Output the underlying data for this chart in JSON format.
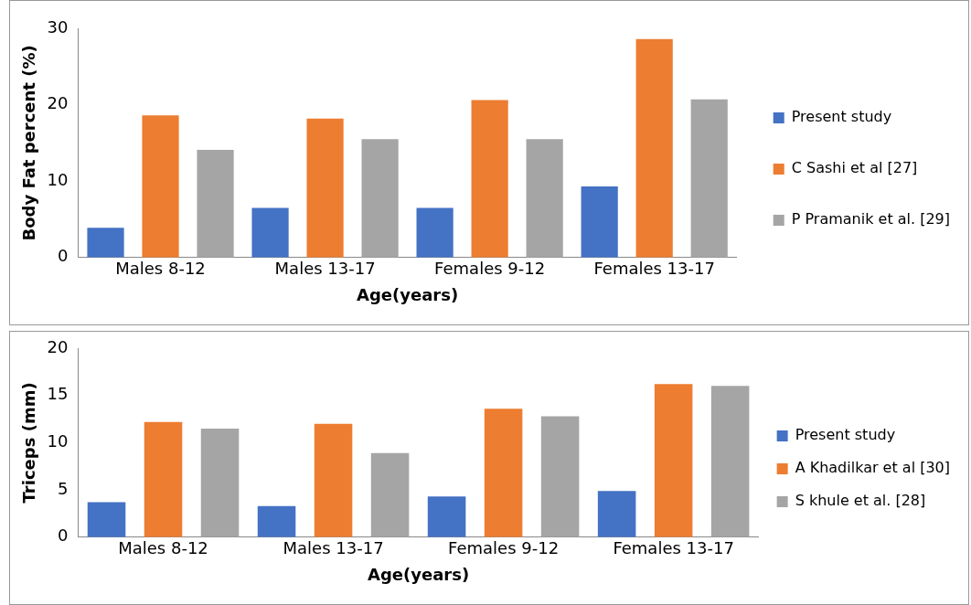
{
  "chart_data": [
    {
      "type": "bar",
      "xlabel": "Age(years)",
      "ylabel": "Body Fat percent (%)",
      "categories": [
        "Males 8-12",
        "Males 13-17",
        "Females 9-12",
        "Females 13-17"
      ],
      "series": [
        {
          "name": "Present study",
          "color": "#4472c4",
          "values": [
            3.9,
            6.5,
            6.5,
            9.3
          ]
        },
        {
          "name": "C Sashi et al [27]",
          "color": "#ed7d31",
          "values": [
            18.6,
            18.2,
            20.6,
            28.6
          ]
        },
        {
          "name": "P Pramanik et al. [29]",
          "color": "#a5a5a5",
          "values": [
            14.1,
            15.5,
            15.5,
            20.7
          ]
        }
      ],
      "ylim": [
        0,
        30
      ],
      "yticks": [
        0,
        10,
        20,
        30
      ],
      "grid": false,
      "legend": "right"
    },
    {
      "type": "bar",
      "xlabel": "Age(years)",
      "ylabel": "Triceps (mm)",
      "categories": [
        "Males 8-12",
        "Males 13-17",
        "Females 9-12",
        "Females 13-17"
      ],
      "series": [
        {
          "name": "Present study",
          "color": "#4472c4",
          "values": [
            3.7,
            3.3,
            4.3,
            4.9
          ]
        },
        {
          "name": "A Khadilkar et al [30]",
          "color": "#ed7d31",
          "values": [
            12.2,
            12.0,
            13.6,
            16.2
          ]
        },
        {
          "name": "S khule et al. [28]",
          "color": "#a5a5a5",
          "values": [
            11.5,
            8.9,
            12.8,
            16.0
          ]
        }
      ],
      "ylim": [
        0,
        20
      ],
      "yticks": [
        0,
        5,
        10,
        15,
        20
      ],
      "grid": false,
      "legend": "right"
    }
  ]
}
